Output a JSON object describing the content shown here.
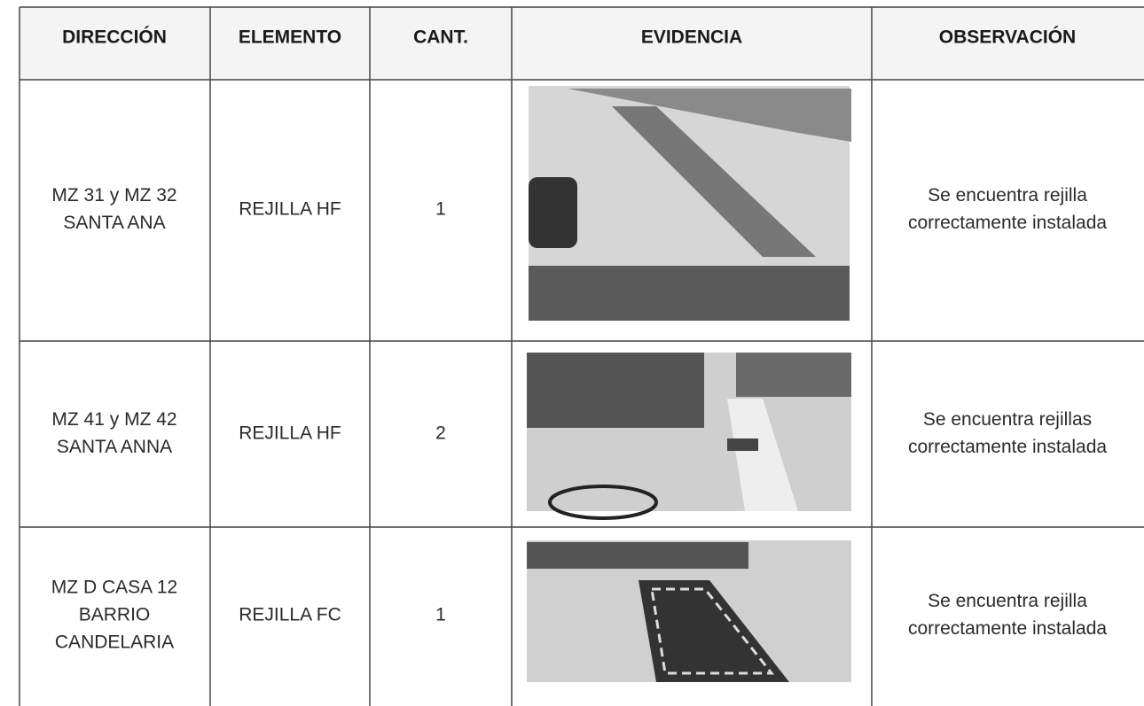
{
  "table": {
    "header": [
      "DIRECCIÓN",
      "ELEMENTO",
      "CANT.",
      "EVIDENCIA",
      "OBSERVACIÓN"
    ],
    "rows": [
      {
        "direccion": [
          "MZ 31 y MZ 32",
          "SANTA ANA"
        ],
        "elemento": "REJILLA HF",
        "cantidad": 1,
        "observacion": [
          "Se encuentra rejilla",
          "correctamente instalada"
        ]
      },
      {
        "direccion": [
          "MZ 41 y MZ 42",
          "SANTA ANNA"
        ],
        "elemento": "REJILLA HF",
        "cantidad": 2,
        "observacion": [
          "Se encuentra rejillas",
          "correctamente instalada"
        ]
      },
      {
        "direccion": [
          "MZ D CASA 12",
          "BARRIO",
          "CANDELARIA"
        ],
        "elemento": "REJILLA FC",
        "cantidad": 1,
        "observacion": [
          "Se encuentra rejilla",
          "correctamente instalada"
        ]
      }
    ]
  }
}
